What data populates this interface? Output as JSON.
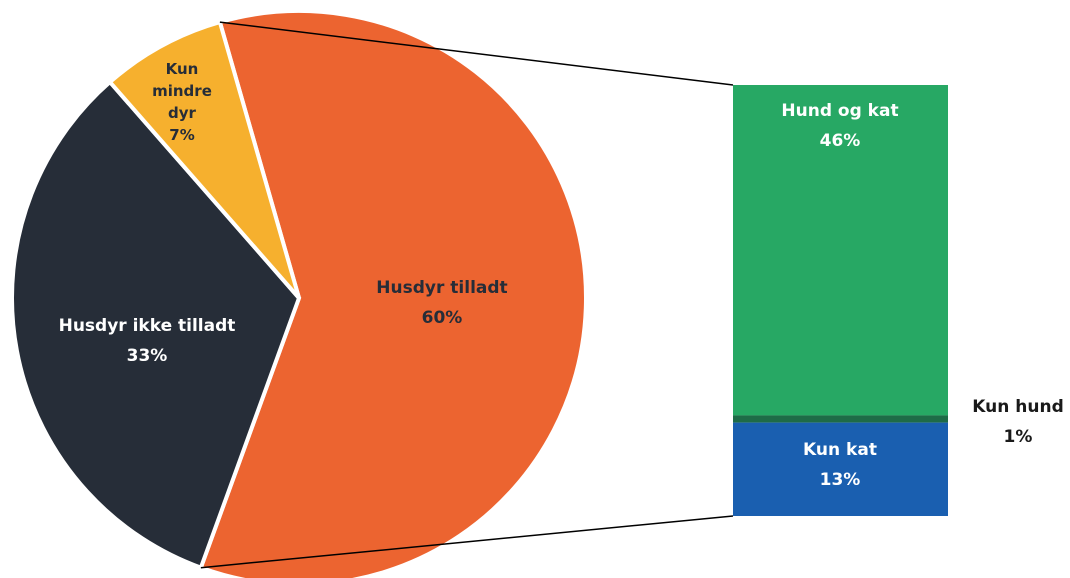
{
  "chart_data": {
    "type": "pie-of-bar",
    "pie": {
      "categories": [
        "Husdyr tilladt",
        "Husdyr ikke tilladt",
        "Kun mindre dyr"
      ],
      "values": [
        60,
        33,
        7
      ],
      "value_labels": [
        "60%",
        "33%",
        "7%"
      ],
      "colors": [
        "#ec6430",
        "#262d38",
        "#f6b02e"
      ]
    },
    "bar": {
      "categories": [
        "Hund og kat",
        "Kun hund",
        "Kun kat"
      ],
      "values": [
        46,
        1,
        13
      ],
      "value_labels": [
        "46%",
        "1%",
        "13%"
      ],
      "colors": [
        "#27a864",
        "#1e6b47",
        "#1a5fb0"
      ]
    }
  }
}
